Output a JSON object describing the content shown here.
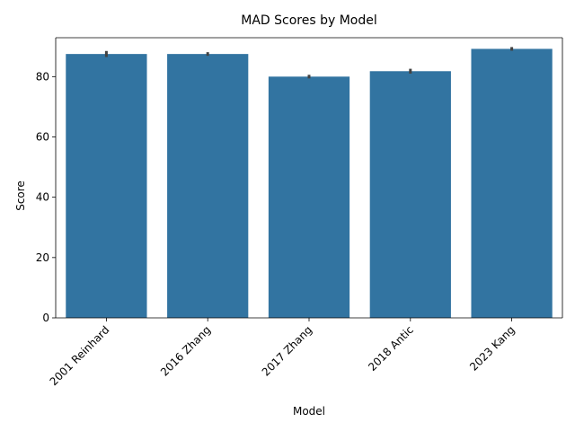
{
  "colors": {
    "bar": "#3274a1",
    "error_bar": "#424242",
    "axis": "#000000",
    "background": "#ffffff"
  },
  "chart_data": {
    "type": "bar",
    "title": "MAD Scores by Model",
    "xlabel": "Model",
    "ylabel": "Score",
    "categories": [
      "2001 Reinhard",
      "2016 Zhang",
      "2017 Zhang",
      "2018 Antic",
      "2023 Kang"
    ],
    "values": [
      87.5,
      87.5,
      80.0,
      81.8,
      89.2
    ],
    "error_low": [
      86.5,
      86.9,
      79.4,
      81.0,
      88.6
    ],
    "error_high": [
      88.5,
      88.1,
      80.6,
      82.6,
      89.8
    ],
    "ylim": [
      0,
      92.9
    ],
    "yticks": [
      0,
      20,
      40,
      60,
      80
    ],
    "grid": false,
    "legend": "none"
  }
}
